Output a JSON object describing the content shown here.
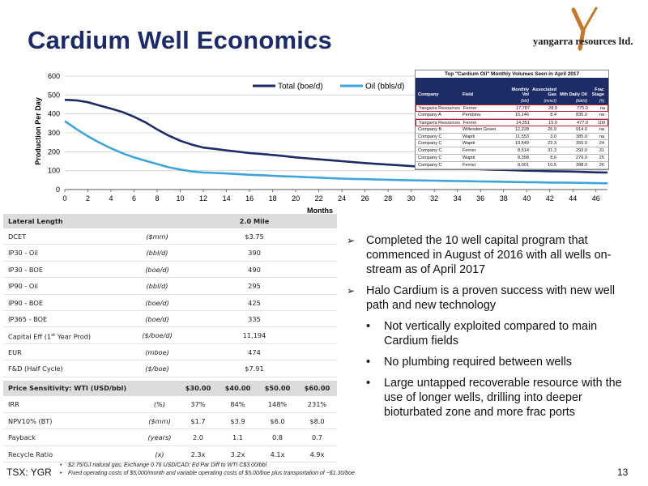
{
  "header": {
    "title": "Cardium Well Economics",
    "logo_text": "yangarra resources ltd."
  },
  "chart_data": {
    "type": "line",
    "xlabel": "Months",
    "ylabel": "Production Per Day",
    "xlim": [
      0,
      47
    ],
    "ylim": [
      0,
      600
    ],
    "x_ticks": [
      0,
      2,
      4,
      6,
      8,
      10,
      12,
      14,
      16,
      18,
      20,
      22,
      24,
      26,
      28,
      30,
      32,
      34,
      36,
      38,
      40,
      42,
      44,
      46
    ],
    "y_ticks": [
      0,
      100,
      200,
      300,
      400,
      500,
      600
    ],
    "legend_position": "top-center",
    "series": [
      {
        "name": "Total (boe/d)",
        "color": "#1d2b66",
        "points": [
          [
            0,
            475
          ],
          [
            1,
            472
          ],
          [
            2,
            462
          ],
          [
            3,
            445
          ],
          [
            4,
            428
          ],
          [
            5,
            410
          ],
          [
            6,
            385
          ],
          [
            7,
            355
          ],
          [
            8,
            318
          ],
          [
            9,
            285
          ],
          [
            10,
            258
          ],
          [
            11,
            238
          ],
          [
            12,
            222
          ],
          [
            13,
            215
          ],
          [
            14,
            207
          ],
          [
            15,
            200
          ],
          [
            16,
            193
          ],
          [
            17,
            188
          ],
          [
            18,
            183
          ],
          [
            19,
            177
          ],
          [
            20,
            170
          ],
          [
            21,
            165
          ],
          [
            22,
            160
          ],
          [
            23,
            155
          ],
          [
            24,
            150
          ],
          [
            25,
            145
          ],
          [
            26,
            140
          ],
          [
            27,
            136
          ],
          [
            28,
            132
          ],
          [
            29,
            128
          ],
          [
            30,
            124
          ],
          [
            31,
            121
          ],
          [
            32,
            118
          ],
          [
            33,
            115
          ],
          [
            34,
            112
          ],
          [
            35,
            110
          ],
          [
            36,
            108
          ],
          [
            37,
            106
          ],
          [
            38,
            104
          ],
          [
            39,
            102
          ],
          [
            40,
            100
          ],
          [
            41,
            99
          ],
          [
            42,
            97
          ],
          [
            43,
            96
          ],
          [
            44,
            95
          ],
          [
            45,
            93
          ],
          [
            46,
            91
          ],
          [
            47,
            90
          ]
        ]
      },
      {
        "name": "Oil (bbls/d)",
        "color": "#3da5dc",
        "points": [
          [
            0,
            362
          ],
          [
            1,
            320
          ],
          [
            2,
            282
          ],
          [
            3,
            248
          ],
          [
            4,
            218
          ],
          [
            5,
            192
          ],
          [
            6,
            170
          ],
          [
            7,
            152
          ],
          [
            8,
            135
          ],
          [
            9,
            118
          ],
          [
            10,
            106
          ],
          [
            11,
            96
          ],
          [
            12,
            90
          ],
          [
            13,
            88
          ],
          [
            14,
            85
          ],
          [
            15,
            82
          ],
          [
            16,
            78
          ],
          [
            17,
            76
          ],
          [
            18,
            73
          ],
          [
            19,
            70
          ],
          [
            20,
            68
          ],
          [
            21,
            65
          ],
          [
            22,
            63
          ],
          [
            23,
            60
          ],
          [
            24,
            58
          ],
          [
            25,
            56
          ],
          [
            26,
            55
          ],
          [
            27,
            53
          ],
          [
            28,
            52
          ],
          [
            29,
            50
          ],
          [
            30,
            49
          ],
          [
            31,
            48
          ],
          [
            32,
            47
          ],
          [
            33,
            46
          ],
          [
            34,
            45
          ],
          [
            35,
            44
          ],
          [
            36,
            43
          ],
          [
            37,
            42
          ],
          [
            38,
            41
          ],
          [
            39,
            40
          ],
          [
            40,
            39
          ],
          [
            41,
            38
          ],
          [
            42,
            37
          ],
          [
            43,
            37
          ],
          [
            44,
            36
          ],
          [
            45,
            35
          ],
          [
            46,
            34
          ],
          [
            47,
            33
          ]
        ]
      }
    ]
  },
  "volume_table": {
    "title": "Top \"Cardium Oil\" Monthly Volumes Seen in April 2017",
    "headers": [
      "Company",
      "Field",
      "Monthly Vol",
      "Associated Gas",
      "Mth Daily Oil",
      "Frac Stage"
    ],
    "subheaders": [
      "",
      "",
      "(bbl)",
      "(mmcf)",
      "(bbl/d)",
      "(#)"
    ],
    "rows": [
      {
        "cells": [
          "Yangarra Resources",
          "Ferrier",
          "17,787",
          "28.9",
          "775.0",
          "na"
        ],
        "highlight": true
      },
      {
        "cells": [
          "Company A",
          "Pembina",
          "15,146",
          "8.4",
          "836.0",
          "na"
        ],
        "highlight": false
      },
      {
        "cells": [
          "Yangarra Resources",
          "Ferrier",
          "14,351",
          "15.0",
          "477.0",
          "100"
        ],
        "highlight": true
      },
      {
        "cells": [
          "Company B",
          "Willesden Green",
          "12,228",
          "26.9",
          "914.0",
          "na"
        ],
        "highlight": false
      },
      {
        "cells": [
          "Company C",
          "Wapiti",
          "11,553",
          "3.0",
          "385.0",
          "na"
        ],
        "highlight": false
      },
      {
        "cells": [
          "Company C",
          "Wapiti",
          "10,649",
          "22.3",
          "355.0",
          "24"
        ],
        "highlight": false
      },
      {
        "cells": [
          "Company C",
          "Ferrier",
          "8,514",
          "31.3",
          "293.0",
          "31"
        ],
        "highlight": false
      },
      {
        "cells": [
          "Company C",
          "Wapiti",
          "8,358",
          "8.6",
          "279.0",
          "25"
        ],
        "highlight": false
      },
      {
        "cells": [
          "Company C",
          "Ferrier",
          "8,001",
          "10.5",
          "398.0",
          "26"
        ],
        "highlight": false
      }
    ]
  },
  "economics": {
    "header_label": "Lateral Length",
    "header_value": "2.0 Mile",
    "rows": [
      {
        "label": "DCET",
        "unit": "($mm)",
        "value": "$3.75"
      },
      {
        "label": "IP30 - Oil",
        "unit": "(bbl/d)",
        "value": "390"
      },
      {
        "label": "IP30 - BOE",
        "unit": "(boe/d)",
        "value": "490"
      },
      {
        "label": "IP90 - Oil",
        "unit": "(bbl/d)",
        "value": "295"
      },
      {
        "label": "IP90 - BOE",
        "unit": "(boe/d)",
        "value": "425"
      },
      {
        "label": "IP365 - BOE",
        "unit": "(boe/d)",
        "value": "335"
      },
      {
        "label": "Capital Eff (1st Year Prod)",
        "unit": "($/boe/d)",
        "value": "11,194"
      },
      {
        "label": "EUR",
        "unit": "(mboe)",
        "value": "474"
      },
      {
        "label": "F&D (Half Cycle)",
        "unit": "($/boe)",
        "value": "$7.91"
      }
    ]
  },
  "sensitivity": {
    "header_label": "Price Sensitivity: WTI (USD/bbl)",
    "prices": [
      "$30.00",
      "$40.00",
      "$50.00",
      "$60.00"
    ],
    "rows": [
      {
        "label": "IRR",
        "unit": "(%)",
        "values": [
          "37%",
          "84%",
          "148%",
          "231%"
        ]
      },
      {
        "label": "NPV10% (BT)",
        "unit": "($mm)",
        "values": [
          "$1.7",
          "$3.9",
          "$6.0",
          "$8.0"
        ]
      },
      {
        "label": "Payback",
        "unit": "(years)",
        "values": [
          "2.0",
          "1.1",
          "0.8",
          "0.7"
        ]
      },
      {
        "label": "Recycle Ratio",
        "unit": "(x)",
        "values": [
          "2.3x",
          "3.2x",
          "4.1x",
          "4.9x"
        ]
      }
    ]
  },
  "bullets": [
    {
      "level": 1,
      "text": "Completed the 10 well capital program that commenced in August of 2016 with all wells on-stream as of April 2017"
    },
    {
      "level": 1,
      "text": "Halo Cardium is a proven success with new well path and new technology"
    },
    {
      "level": 2,
      "text": "Not vertically exploited compared to main Cardium fields"
    },
    {
      "level": 2,
      "text": "No plumbing required between wells"
    },
    {
      "level": 2,
      "text": "Large untapped recoverable resource with the use of longer wells, drilling into deeper bioturbated zone and more frac ports"
    }
  ],
  "footer": {
    "ticker": "TSX: YGR",
    "page_number": "13",
    "notes": [
      "$2.75/GJ natural gas; Exchange 0.76 USD/CAD; Ed Par Diff to WTI C$3.00/bbl",
      "Fixed operating costs of $5,000/month and variable operating costs of $5.00/boe plus transportation of ~$1.30/boe"
    ]
  }
}
